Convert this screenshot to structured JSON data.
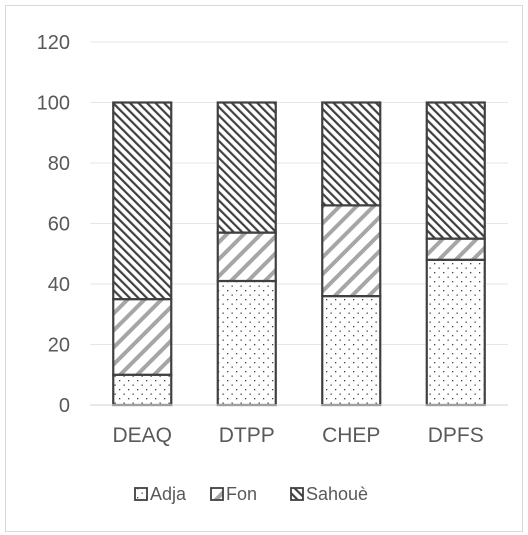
{
  "chart_data": {
    "type": "bar",
    "stacked": true,
    "categories": [
      "DEAQ",
      "DTPP",
      "CHEP",
      "DPFS"
    ],
    "series": [
      {
        "name": "Adja",
        "values": [
          10,
          41,
          36,
          48
        ],
        "pattern": "dots"
      },
      {
        "name": "Fon",
        "values": [
          25,
          16,
          30,
          7
        ],
        "pattern": "wide-diagonal"
      },
      {
        "name": "Sahouè",
        "values": [
          65,
          43,
          34,
          45
        ],
        "pattern": "dense-diagonal"
      }
    ],
    "title": "",
    "xlabel": "",
    "ylabel": "",
    "ylim": [
      0,
      120
    ],
    "yticks": [
      0,
      20,
      40,
      60,
      80,
      100,
      120
    ],
    "grid": true,
    "legend": "bottom",
    "colors": {
      "outline": "#404040",
      "pattern": "#7f7f7f",
      "grid": "#e6e6e6",
      "text": "#595959"
    }
  }
}
